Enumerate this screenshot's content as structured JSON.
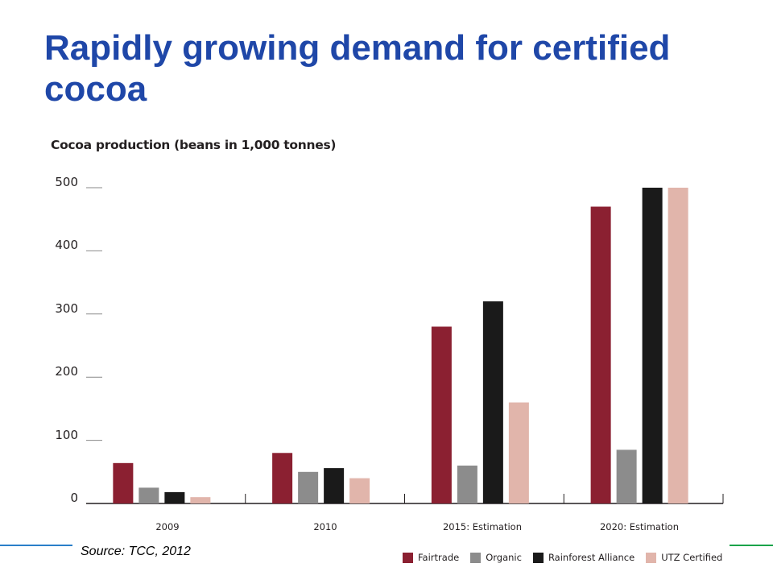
{
  "slide": {
    "title": "Rapidly growing demand for certified cocoa",
    "source": "Source: TCC, 2012"
  },
  "chart_data": {
    "type": "bar",
    "subtitle": "Cocoa production (beans in 1,000 tonnes)",
    "categories": [
      "2009",
      "2010",
      "2015: Estimation",
      "2020: Estimation"
    ],
    "series": [
      {
        "name": "Fairtrade",
        "color": "#8b2031",
        "values": [
          64,
          80,
          280,
          470
        ]
      },
      {
        "name": "Organic",
        "color": "#8c8c8c",
        "values": [
          25,
          50,
          60,
          85
        ]
      },
      {
        "name": "Rainforest Alliance",
        "color": "#1a1a1a",
        "values": [
          18,
          56,
          320,
          500
        ]
      },
      {
        "name": "UTZ Certified",
        "color": "#e1b5ab",
        "values": [
          10,
          40,
          160,
          500
        ]
      }
    ],
    "yticks": [
      "0",
      "100",
      "200",
      "300",
      "400",
      "500"
    ],
    "ylim": [
      0,
      500
    ],
    "legend_position": "bottom-right",
    "grid": false
  },
  "colors": {
    "title": "#1f47a8",
    "accent_left": "#2a7fc9",
    "accent_right": "#1aa34a"
  }
}
